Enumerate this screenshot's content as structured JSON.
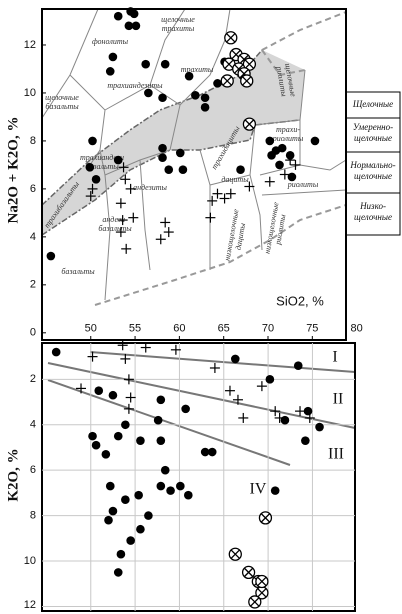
{
  "chart_data": [
    {
      "type": "scatter",
      "x_label": "SiO2, %",
      "y_label": "Na2O + K2O, %",
      "xlim": [
        44.5,
        78.8
      ],
      "ylim": [
        -0.3,
        13.5
      ],
      "xticks": [
        50,
        55,
        60,
        65,
        70,
        75,
        80
      ],
      "yticks": [
        0,
        2,
        4,
        6,
        8,
        10,
        12
      ],
      "series": [
        {
          "marker": "dot",
          "color": "#000000",
          "x": [
            45.5,
            54.5,
            54.9,
            53.1,
            54.3,
            55.1,
            52.5,
            52.2,
            56.2,
            58.4,
            56.5,
            58.1,
            61.8,
            62.9,
            61.1,
            64.3,
            65.1,
            62.9,
            50.2,
            49.9,
            50.6,
            53.1,
            58.1,
            58.1,
            60.1,
            58.8,
            60.4,
            66.9,
            70.2,
            70.9,
            70.4,
            71.6,
            72.5,
            71.3,
            75.3,
            72.7
          ],
          "values": [
            3.2,
            13.4,
            13.3,
            13.2,
            12.8,
            12.8,
            11.5,
            10.9,
            11.2,
            11.2,
            10.0,
            9.8,
            9.9,
            9.8,
            10.7,
            10.4,
            11.3,
            9.4,
            8.0,
            6.9,
            6.4,
            7.2,
            7.7,
            7.3,
            7.5,
            6.8,
            6.8,
            6.8,
            8.0,
            7.6,
            7.4,
            7.7,
            7.4,
            7.0,
            8.0,
            6.5
          ]
        },
        {
          "marker": "cross",
          "color": "#000000",
          "x": [
            50.0,
            50.2,
            53.7,
            53.9,
            54.5,
            53.4,
            53.6,
            53.4,
            54.8,
            58.4,
            57.9,
            58.8,
            63.7,
            64.3,
            65.1,
            65.8,
            63.5,
            67.9,
            70.2,
            71.9,
            72.5,
            73.1,
            54.0
          ],
          "values": [
            5.7,
            6.0,
            6.9,
            6.4,
            6.0,
            5.4,
            4.7,
            4.2,
            4.8,
            4.6,
            3.9,
            4.2,
            5.5,
            5.8,
            5.6,
            5.8,
            4.8,
            6.1,
            6.3,
            6.6,
            7.2,
            7.0,
            3.5
          ]
        },
        {
          "marker": "circle-x",
          "color": "#000000",
          "x": [
            65.8,
            66.4,
            67.3,
            67.9,
            65.6,
            66.7,
            67.3,
            65.4,
            67.6,
            67.9
          ],
          "values": [
            12.3,
            11.6,
            11.4,
            11.2,
            11.2,
            11.0,
            10.8,
            10.5,
            10.5,
            8.7
          ]
        }
      ],
      "field_labels": [
        [
          "фонолиты"
        ],
        [
          "щелочные",
          "трахиты"
        ],
        [
          "трахиты"
        ],
        [
          "щелочные",
          "базальты"
        ],
        [
          "трахиандезиты"
        ],
        [
          "трахиандези",
          "базальты"
        ],
        [
          "трахибазальты"
        ],
        [
          "андезиты"
        ],
        [
          "андези-",
          "базальты"
        ],
        [
          "базальты"
        ],
        [
          "трахидациты"
        ],
        [
          "дациты"
        ],
        [
          "трахи-",
          "риолиты"
        ],
        [
          "риолиты"
        ],
        [
          "низкощелочные",
          "дациты"
        ],
        [
          "низкощелочные",
          "риолиты"
        ],
        [
          "щелочные",
          "риолиты"
        ]
      ],
      "side_labels": [
        [
          "Щелочные"
        ],
        [
          "Умеренно-",
          "щелочные"
        ],
        [
          "Нормально-",
          "щелочные"
        ],
        [
          "Низко-",
          "щелочные"
        ]
      ]
    },
    {
      "type": "scatter",
      "y_label": "K2O, %",
      "xlim": [
        44.5,
        79.8
      ],
      "ylim": [
        0.4,
        12.2
      ],
      "y_inverted": true,
      "grid": true,
      "xticks": [
        50,
        55,
        60,
        65,
        70,
        75
      ],
      "xticklabels": false,
      "yticks": [
        2,
        4,
        6,
        8,
        10,
        12
      ],
      "series": [
        {
          "marker": "dot",
          "color": "#000000",
          "x": [
            46.1,
            50.9,
            52.5,
            50.2,
            50.6,
            51.7,
            53.1,
            53.9,
            55.6,
            57.6,
            57.9,
            58.4,
            60.7,
            57.9,
            62.9,
            63.7,
            52.2,
            52.5,
            52.0,
            53.9,
            55.4,
            56.5,
            55.6,
            54.5,
            53.4,
            53.1,
            57.9,
            59.0,
            60.1,
            61.0,
            66.3,
            70.2,
            73.4,
            71.9,
            74.5,
            74.2,
            75.8,
            70.8
          ],
          "values": [
            0.8,
            2.5,
            2.7,
            4.5,
            4.9,
            5.3,
            4.5,
            4.0,
            4.7,
            3.8,
            4.7,
            6.0,
            3.3,
            2.9,
            5.2,
            5.2,
            6.7,
            7.8,
            8.2,
            7.3,
            7.1,
            8.0,
            8.6,
            9.1,
            9.7,
            10.5,
            6.7,
            6.9,
            6.7,
            7.1,
            1.1,
            2.0,
            1.4,
            3.8,
            3.4,
            4.7,
            4.1,
            6.9
          ]
        },
        {
          "marker": "cross",
          "color": "#000000",
          "x": [
            50.2,
            53.6,
            53.9,
            54.3,
            56.2,
            59.6,
            54.5,
            54.3,
            64.0,
            65.7,
            66.6,
            67.2,
            69.3,
            70.8,
            71.3,
            73.6,
            74.7,
            48.9
          ],
          "values": [
            1.0,
            0.5,
            1.1,
            2.0,
            0.6,
            0.7,
            2.8,
            3.3,
            1.5,
            2.5,
            2.9,
            3.7,
            2.3,
            3.4,
            3.7,
            3.4,
            3.7,
            2.4
          ]
        },
        {
          "marker": "circle-x",
          "color": "#000000",
          "x": [
            69.7,
            66.3,
            67.8,
            68.9,
            69.3,
            68.5,
            69.3
          ],
          "values": [
            8.1,
            9.7,
            10.5,
            10.9,
            11.4,
            11.8,
            10.9
          ]
        }
      ],
      "annotations": [
        "I",
        "II",
        "III",
        "IV"
      ]
    }
  ]
}
